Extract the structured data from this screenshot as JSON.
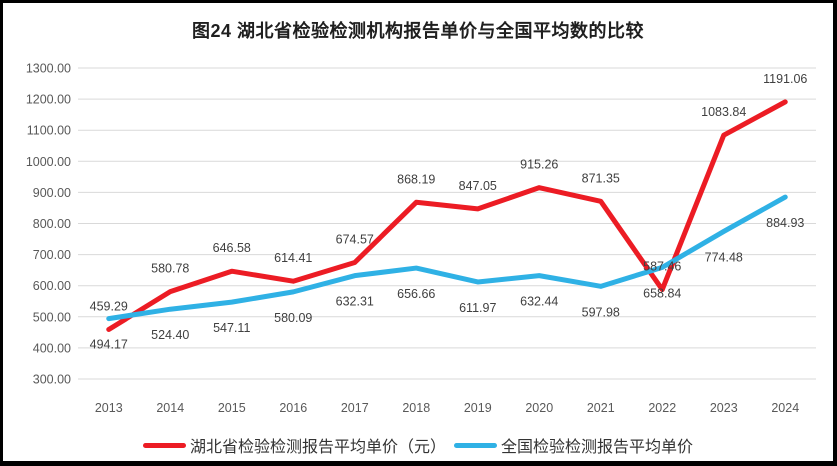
{
  "title": "图24 湖北省检验检测机构报告单价与全国平均数的比较",
  "chart_data": {
    "type": "line",
    "categories": [
      "2013",
      "2014",
      "2015",
      "2016",
      "2017",
      "2018",
      "2019",
      "2020",
      "2021",
      "2022",
      "2023",
      "2024"
    ],
    "series": [
      {
        "name": "湖北省检验检测报告平均单价（元）",
        "color": "#ec1c24",
        "label_position": "above",
        "values": [
          459.29,
          580.78,
          646.58,
          614.41,
          674.57,
          868.19,
          847.05,
          915.26,
          871.35,
          587.46,
          1083.84,
          1191.06
        ]
      },
      {
        "name": "全国检验检测报告平均单价",
        "color": "#2fb1e5",
        "label_position": "below",
        "values": [
          494.17,
          524.4,
          547.11,
          580.09,
          632.31,
          656.66,
          611.97,
          632.44,
          597.98,
          658.84,
          774.48,
          884.93
        ]
      }
    ],
    "ylim": [
      300,
      1300
    ],
    "y_tick_step": 100,
    "y_tick_labels": [
      "300.00",
      "400.00",
      "500.00",
      "600.00",
      "700.00",
      "800.00",
      "900.00",
      "1000.00",
      "1100.00",
      "1200.00",
      "1300.00"
    ],
    "value_label_decimals": 2,
    "grid": true,
    "legend_position": "bottom"
  },
  "style": {
    "grid_color": "#d9d9d9",
    "axis_text_color": "#595959",
    "data_label_color": "#404040",
    "line_width": 5
  }
}
